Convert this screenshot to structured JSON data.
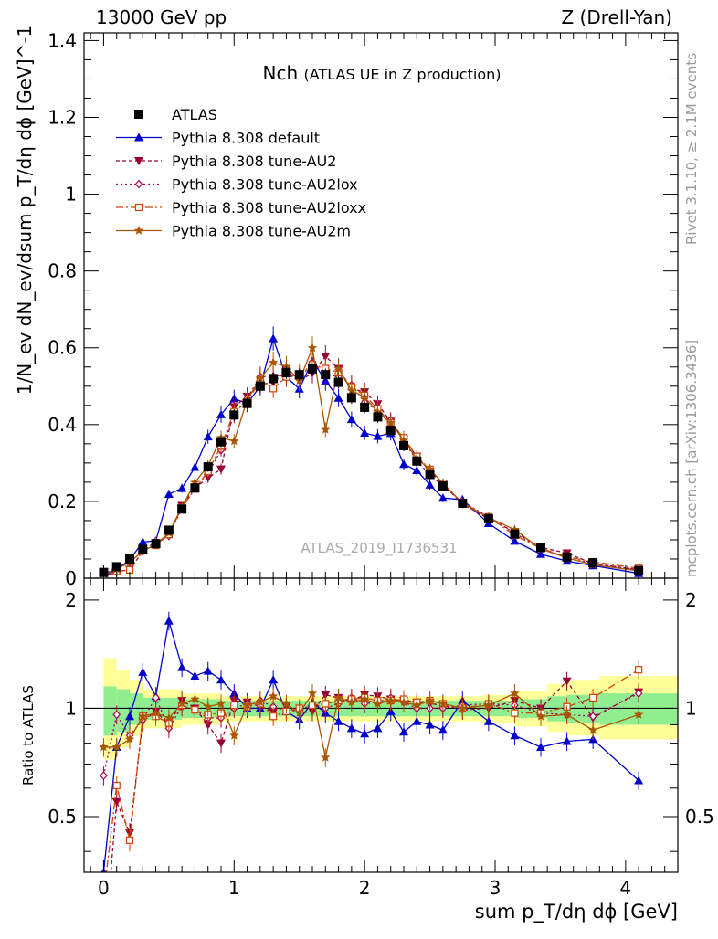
{
  "header": {
    "left": "13000 GeV pp",
    "right": "Z (Drell-Yan)"
  },
  "side_labels": {
    "rivet": "Rivet 3.1.10, ≥ 2.1M events",
    "mcplots": "mcplots.cern.ch [arXiv:1306.3436]"
  },
  "chart_data": {
    "type": "line",
    "title": "Nch",
    "subtitle": "(ATLAS UE in Z production)",
    "watermark": "ATLAS_2019_I1736531",
    "xlabel": "sum p_T/dη dϕ [GeV]",
    "ylabel_main": "1/N_ev dN_ev/dsum p_T/dη dϕ [GeV]^-1",
    "ylabel_ratio": "Ratio to ATLAS",
    "xlim": [
      -0.15,
      4.4
    ],
    "ylim_main": [
      0,
      1.42
    ],
    "ylim_ratio": [
      0.35,
      2.3
    ],
    "x_ticks": [
      "0",
      "1",
      "2",
      "3",
      "4"
    ],
    "y_ticks_main": [
      "0",
      "0.2",
      "0.4",
      "0.6",
      "0.8",
      "1",
      "1.2",
      "1.4"
    ],
    "y_ticks_ratio": [
      "0.5",
      "1",
      "2"
    ],
    "legend": [
      "ATLAS",
      "Pythia 8.308 default",
      "Pythia 8.308 tune-AU2",
      "Pythia 8.308 tune-AU2lox",
      "Pythia 8.308 tune-AU2loxx",
      "Pythia 8.308 tune-AU2m"
    ],
    "x": [
      0.0,
      0.1,
      0.2,
      0.3,
      0.4,
      0.5,
      0.6,
      0.7,
      0.8,
      0.9,
      1.0,
      1.1,
      1.2,
      1.3,
      1.4,
      1.5,
      1.6,
      1.7,
      1.8,
      1.9,
      2.0,
      2.1,
      2.2,
      2.3,
      2.4,
      2.5,
      2.6,
      2.75,
      2.95,
      3.15,
      3.35,
      3.55,
      3.75,
      4.1
    ],
    "data": {
      "values": [
        0.015,
        0.03,
        0.05,
        0.075,
        0.09,
        0.125,
        0.18,
        0.235,
        0.29,
        0.355,
        0.425,
        0.455,
        0.5,
        0.52,
        0.535,
        0.53,
        0.545,
        0.53,
        0.51,
        0.47,
        0.445,
        0.42,
        0.385,
        0.345,
        0.305,
        0.27,
        0.24,
        0.195,
        0.155,
        0.115,
        0.08,
        0.055,
        0.04,
        0.02
      ],
      "errors": [
        0.005,
        0.006,
        0.007,
        0.008,
        0.009,
        0.01,
        0.011,
        0.012,
        0.013,
        0.014,
        0.015,
        0.015,
        0.016,
        0.016,
        0.016,
        0.016,
        0.016,
        0.016,
        0.016,
        0.016,
        0.015,
        0.015,
        0.014,
        0.014,
        0.013,
        0.012,
        0.012,
        0.011,
        0.01,
        0.009,
        0.008,
        0.007,
        0.006,
        0.005
      ]
    },
    "series": [
      {
        "name": "Pythia 8.308 default",
        "color": "#0000cc",
        "dash": "",
        "marker": "triangle-up",
        "ratio": [
          0.35,
          0.78,
          0.95,
          1.26,
          1.08,
          1.75,
          1.3,
          1.23,
          1.27,
          1.2,
          1.1,
          1.0,
          1.0,
          1.2,
          0.98,
          0.93,
          1.04,
          0.97,
          0.92,
          0.88,
          0.85,
          0.88,
          0.98,
          0.86,
          0.92,
          0.9,
          0.87,
          1.05,
          0.92,
          0.84,
          0.78,
          0.81,
          0.82,
          0.63
        ]
      },
      {
        "name": "Pythia 8.308 tune-AU2",
        "color": "#990033",
        "dash": "4,3",
        "marker": "triangle-down",
        "ratio": [
          0.2,
          0.55,
          0.45,
          0.92,
          0.98,
          0.9,
          1.05,
          1.0,
          0.9,
          0.8,
          1.05,
          1.04,
          1.01,
          0.98,
          1.01,
          0.97,
          0.98,
          1.09,
          1.07,
          1.05,
          1.09,
          1.08,
          1.06,
          1.05,
          1.04,
          1.03,
          1.02,
          0.99,
          1.0,
          1.05,
          1.0,
          1.19,
          0.94,
          1.11
        ]
      },
      {
        "name": "Pythia 8.308 tune-AU2lox",
        "color": "#aa0055",
        "dash": "2,3",
        "marker": "diamond",
        "ratio": [
          0.65,
          0.96,
          0.84,
          0.93,
          1.07,
          0.88,
          1.01,
          0.99,
          0.94,
          0.94,
          1.0,
          1.03,
          1.05,
          1.01,
          0.99,
          0.98,
          1.03,
          1.0,
          1.03,
          1.07,
          1.03,
          1.04,
          1.07,
          1.04,
          1.0,
          1.0,
          1.0,
          1.02,
          1.03,
          1.02,
          0.97,
          0.96,
          0.95,
          1.1
        ]
      },
      {
        "name": "Pythia 8.308 tune-AU2loxx",
        "color": "#cc4400",
        "dash": "8,3,2,3",
        "marker": "square-open",
        "ratio": [
          0.3,
          0.61,
          0.43,
          0.95,
          0.95,
          0.91,
          1.02,
          0.99,
          0.96,
          0.97,
          1.02,
          1.01,
          1.03,
          0.95,
          0.98,
          1.0,
          1.02,
          1.03,
          1.05,
          1.06,
          1.07,
          1.05,
          1.05,
          1.06,
          1.04,
          1.05,
          1.03,
          1.0,
          1.03,
          0.97,
          0.97,
          1.01,
          1.07,
          1.28
        ]
      },
      {
        "name": "Pythia 8.308 tune-AU2m",
        "color": "#aa5500",
        "dash": "",
        "marker": "star",
        "ratio": [
          0.78,
          0.78,
          0.82,
          0.95,
          0.97,
          0.94,
          1.03,
          1.06,
          1.01,
          1.03,
          0.84,
          1.02,
          1.04,
          1.08,
          1.03,
          0.97,
          1.1,
          0.73,
          1.07,
          1.04,
          1.06,
          1.03,
          1.05,
          1.04,
          1.02,
          1.05,
          1.03,
          1.0,
          1.02,
          1.1,
          0.95,
          0.96,
          0.87,
          0.96
        ]
      }
    ],
    "bands": {
      "x_edges": [
        0.0,
        0.1,
        0.2,
        0.3,
        0.6,
        0.9,
        1.2,
        1.6,
        2.0,
        2.5,
        2.9,
        3.15,
        3.4,
        3.55,
        3.8,
        4.4
      ],
      "inner_low": [
        0.84,
        0.86,
        0.9,
        0.93,
        0.94,
        0.95,
        0.95,
        0.95,
        0.95,
        0.95,
        0.95,
        0.94,
        0.92,
        0.91,
        0.9
      ],
      "inner_high": [
        1.15,
        1.13,
        1.1,
        1.07,
        1.06,
        1.05,
        1.05,
        1.05,
        1.05,
        1.05,
        1.05,
        1.06,
        1.08,
        1.09,
        1.1
      ],
      "outer_low": [
        0.72,
        0.78,
        0.84,
        0.88,
        0.9,
        0.92,
        0.92,
        0.92,
        0.92,
        0.92,
        0.91,
        0.89,
        0.86,
        0.84,
        0.82
      ],
      "outer_high": [
        1.38,
        1.28,
        1.2,
        1.13,
        1.1,
        1.08,
        1.08,
        1.08,
        1.08,
        1.08,
        1.09,
        1.12,
        1.17,
        1.2,
        1.23
      ]
    },
    "band_colors": {
      "inner": "#90ee90",
      "outer": "#ffff99"
    }
  }
}
